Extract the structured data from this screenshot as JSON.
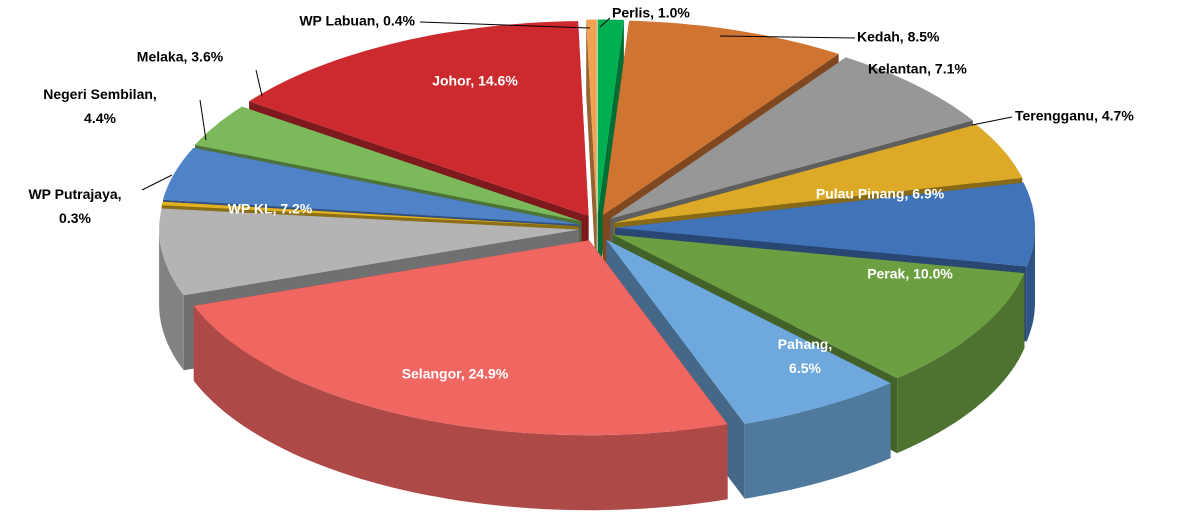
{
  "chart_data": {
    "type": "pie3d",
    "values": [
      1.0,
      8.5,
      7.1,
      4.7,
      6.9,
      10.0,
      6.5,
      24.9,
      7.2,
      0.3,
      4.4,
      3.6,
      14.6,
      0.4
    ],
    "value_labels": [
      "Perlis, 1.0%",
      "Kedah, 8.5%",
      "Kelantan, 7.1%",
      "Terengganu, 4.7%",
      "Pulau Pinang, 6.9%",
      "Perak, 10.0%",
      "Pahang, 6.5%",
      "Selangor, 24.9%",
      "WP KL, 7.2%",
      "WP Putrajaya, 0.3%",
      "Negeri Sembilan, 4.4%",
      "Melaka, 3.6%",
      "Johor, 14.6%",
      "WP Labuan, 0.4%"
    ],
    "colors": [
      "#00b050",
      "#d07432",
      "#979797",
      "#dcaa26",
      "#4173b8",
      "#6c9e42",
      "#6fa8dc",
      "#f06661",
      "#b4b4b4",
      "#e2b222",
      "#5082c8",
      "#7cb95a",
      "#cc2a2e",
      "#f2a252"
    ]
  }
}
